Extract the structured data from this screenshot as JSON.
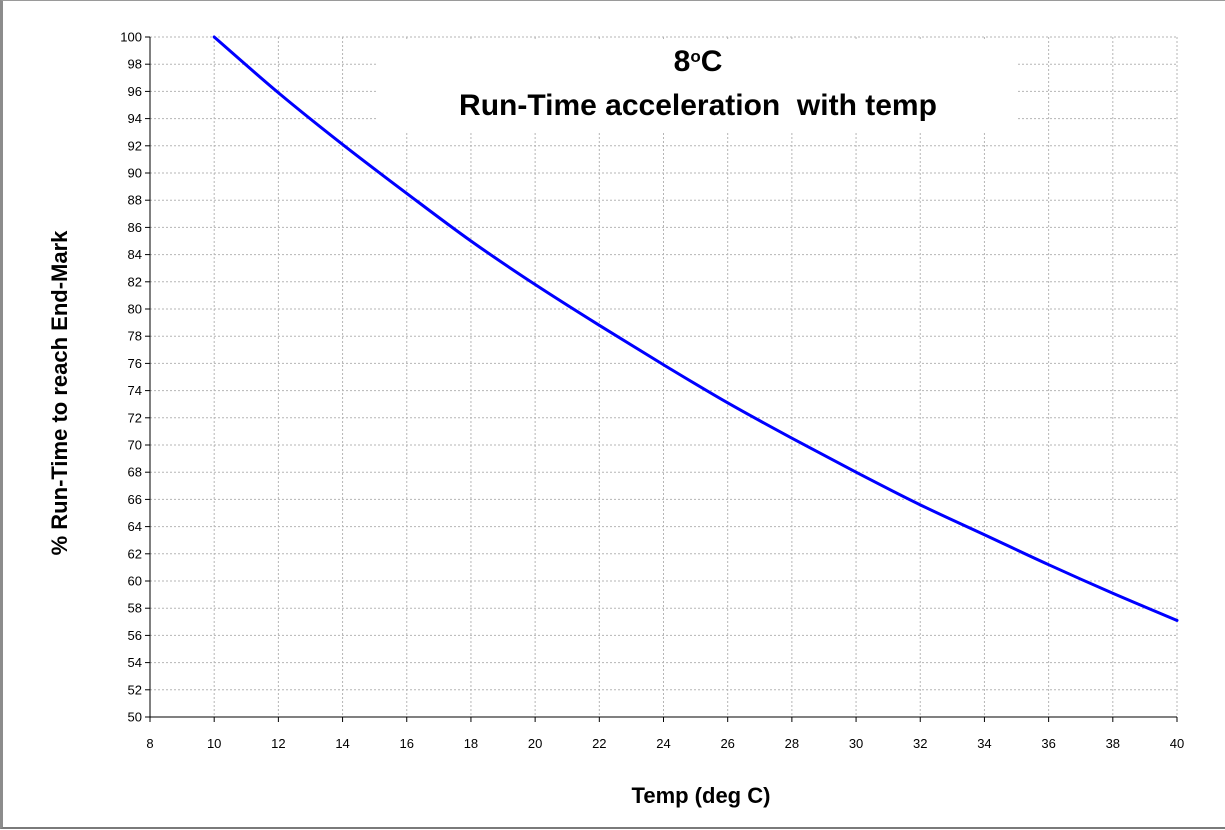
{
  "chart_data": {
    "type": "line",
    "title_line1": "8",
    "title_superscript": "o",
    "title_unit": "C",
    "title_line2": "Run-Time acceleration  with temp",
    "xlabel": "Temp (deg C)",
    "ylabel": "% Run-Time to reach End-Mark",
    "xlim": [
      8,
      40
    ],
    "ylim": [
      50,
      100
    ],
    "x_ticks": [
      8,
      10,
      12,
      14,
      16,
      18,
      20,
      22,
      24,
      26,
      28,
      30,
      32,
      34,
      36,
      38,
      40
    ],
    "y_ticks": [
      50,
      52,
      54,
      56,
      58,
      60,
      62,
      64,
      66,
      68,
      70,
      72,
      74,
      76,
      78,
      80,
      82,
      84,
      86,
      88,
      90,
      92,
      94,
      96,
      98,
      100
    ],
    "grid": true,
    "line_color": "#0000ff",
    "series": [
      {
        "x": [
          10,
          12,
          14,
          16,
          18,
          20,
          22,
          24,
          26,
          28,
          30,
          32,
          34,
          36,
          38,
          40
        ],
        "y": [
          100,
          95.9,
          92.1,
          88.5,
          85.0,
          81.8,
          78.8,
          75.9,
          73.1,
          70.5,
          68.0,
          65.6,
          63.4,
          61.2,
          59.1,
          57.1
        ]
      }
    ]
  }
}
